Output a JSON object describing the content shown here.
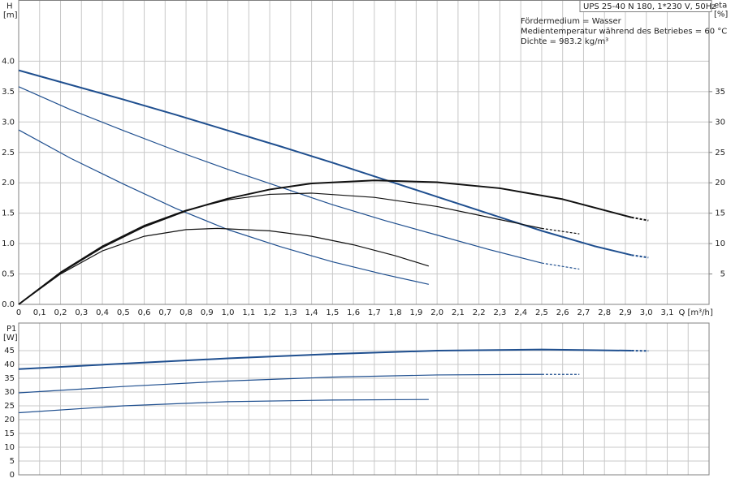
{
  "chart_data": [
    {
      "type": "line",
      "title": "UPS 25-40 N 180, 1*230 V, 50Hz",
      "annotations": [
        "Fördermedium = Wasser",
        "Medientemperatur während des Betriebes = 60 °C",
        "Dichte = 983.2 kg/m³"
      ],
      "ylabel": "H",
      "yunit": "[m]",
      "y2label": "eta",
      "y2unit": "[%]",
      "xlabel": "Q [m³/h]",
      "xlim": [
        0,
        3.3
      ],
      "ylim": [
        0,
        5
      ],
      "y2lim": [
        0,
        50
      ],
      "grid": true,
      "xticks": [
        0,
        {
          "value": 0.1,
          "label": "0,1"
        },
        {
          "value": 0.2,
          "label": "0,2"
        },
        {
          "value": 0.3,
          "label": "0,3"
        },
        {
          "value": 0.4,
          "label": "0,4"
        },
        {
          "value": 0.5,
          "label": "0,5"
        },
        {
          "value": 0.6,
          "label": "0,6"
        },
        {
          "value": 0.7,
          "label": "0,7"
        },
        {
          "value": 0.8,
          "label": "0,8"
        },
        {
          "value": 0.9,
          "label": "0,9"
        },
        {
          "value": 1.0,
          "label": "1,0"
        },
        {
          "value": 1.1,
          "label": "1,1"
        },
        {
          "value": 1.2,
          "label": "1,2"
        },
        {
          "value": 1.3,
          "label": "1,3"
        },
        {
          "value": 1.4,
          "label": "1,4"
        },
        {
          "value": 1.5,
          "label": "1,5"
        },
        {
          "value": 1.6,
          "label": "1,6"
        },
        {
          "value": 1.7,
          "label": "1,7"
        },
        {
          "value": 1.8,
          "label": "1,8"
        },
        {
          "value": 1.9,
          "label": "1,9"
        },
        {
          "value": 2.0,
          "label": "2,0"
        },
        {
          "value": 2.1,
          "label": "2,1"
        },
        {
          "value": 2.2,
          "label": "2,2"
        },
        {
          "value": 2.3,
          "label": "2,3"
        },
        {
          "value": 2.4,
          "label": "2,4"
        },
        {
          "value": 2.5,
          "label": "2,5"
        },
        {
          "value": 2.6,
          "label": "2,6"
        },
        {
          "value": 2.7,
          "label": "2,7"
        },
        {
          "value": 2.8,
          "label": "2,8"
        },
        {
          "value": 2.9,
          "label": "2,9"
        },
        {
          "value": 3.0,
          "label": "3,0"
        },
        {
          "value": 3.1,
          "label": "3,1"
        }
      ],
      "yticks": [
        {
          "value": 0,
          "label": "0.0"
        },
        0.5,
        {
          "value": 1,
          "label": "1.0"
        },
        1.5,
        {
          "value": 2,
          "label": "2.0"
        },
        2.5,
        {
          "value": 3,
          "label": "3.0"
        },
        3.5,
        {
          "value": 4,
          "label": "4.0"
        }
      ],
      "y2ticks": [
        5,
        10,
        15,
        20,
        25,
        30,
        35
      ],
      "series": [
        {
          "color": "#1f4f8f",
          "line_width": 2,
          "dash": false,
          "x": [
            0,
            0.25,
            0.5,
            0.75,
            1.0,
            1.25,
            1.5,
            1.75,
            2.0,
            2.25,
            2.5,
            2.75,
            2.93
          ],
          "values": [
            3.85,
            3.61,
            3.37,
            3.12,
            2.86,
            2.6,
            2.33,
            2.05,
            1.77,
            1.49,
            1.21,
            0.96,
            0.81
          ]
        },
        {
          "color": "#1f4f8f",
          "line_width": 2,
          "dash": true,
          "x": [
            2.93,
            3.01
          ],
          "values": [
            0.81,
            0.77
          ]
        },
        {
          "color": "#1f4f8f",
          "line_width": 1.2,
          "dash": false,
          "x": [
            0,
            0.25,
            0.5,
            0.75,
            1.0,
            1.25,
            1.5,
            1.75,
            2.0,
            2.25,
            2.5
          ],
          "values": [
            3.58,
            3.2,
            2.86,
            2.53,
            2.22,
            1.93,
            1.64,
            1.38,
            1.14,
            0.9,
            0.68
          ]
        },
        {
          "color": "#1f4f8f",
          "line_width": 1.2,
          "dash": true,
          "x": [
            2.5,
            2.68
          ],
          "values": [
            0.68,
            0.58
          ]
        },
        {
          "color": "#1f4f8f",
          "line_width": 1.2,
          "dash": false,
          "x": [
            0,
            0.25,
            0.5,
            0.75,
            1.0,
            1.25,
            1.5,
            1.75,
            1.96
          ],
          "values": [
            2.87,
            2.4,
            1.98,
            1.58,
            1.23,
            0.95,
            0.7,
            0.49,
            0.33
          ]
        },
        {
          "color": "#111111",
          "line_width": 2,
          "dash": false,
          "axis": "y2",
          "x": [
            0,
            0.2,
            0.4,
            0.6,
            0.8,
            1.0,
            1.2,
            1.4,
            1.7,
            2.0,
            2.3,
            2.6,
            2.93
          ],
          "values": [
            0,
            5.2,
            9.4,
            12.8,
            15.4,
            17.4,
            18.9,
            19.9,
            20.4,
            20.1,
            19.1,
            17.3,
            14.3
          ]
        },
        {
          "color": "#111111",
          "line_width": 2,
          "dash": true,
          "axis": "y2",
          "x": [
            2.93,
            3.01
          ],
          "values": [
            14.3,
            13.8
          ]
        },
        {
          "color": "#111111",
          "line_width": 1.2,
          "dash": false,
          "axis": "y2",
          "x": [
            0,
            0.2,
            0.4,
            0.6,
            0.8,
            1.0,
            1.2,
            1.4,
            1.7,
            2.0,
            2.25,
            2.5
          ],
          "values": [
            0,
            5.3,
            9.6,
            13,
            15.5,
            17.2,
            18.1,
            18.3,
            17.6,
            16.1,
            14.3,
            12.5
          ]
        },
        {
          "color": "#111111",
          "line_width": 1.2,
          "dash": true,
          "axis": "y2",
          "x": [
            2.5,
            2.68
          ],
          "values": [
            12.5,
            11.6
          ]
        },
        {
          "color": "#111111",
          "line_width": 1.2,
          "dash": false,
          "axis": "y2",
          "x": [
            0,
            0.2,
            0.4,
            0.6,
            0.8,
            0.95,
            1.2,
            1.4,
            1.6,
            1.8,
            1.96
          ],
          "values": [
            0,
            5.0,
            8.8,
            11.2,
            12.3,
            12.5,
            12.1,
            11.2,
            9.8,
            8,
            6.3
          ]
        }
      ]
    },
    {
      "type": "line",
      "ylabel": "P1",
      "yunit": "[W]",
      "xlim": [
        0,
        3.3
      ],
      "ylim": [
        0,
        55
      ],
      "grid": true,
      "xgrid": [
        0,
        0.1,
        0.2,
        0.3,
        0.4,
        0.5,
        0.6,
        0.7,
        0.8,
        0.9,
        1.0,
        1.1,
        1.2,
        1.3,
        1.4,
        1.5,
        1.6,
        1.7,
        1.8,
        1.9,
        2.0,
        2.1,
        2.2,
        2.3,
        2.4,
        2.5,
        2.6,
        2.7,
        2.8,
        2.9,
        3.0,
        3.1,
        3.2
      ],
      "yticks": [
        0,
        5,
        10,
        15,
        20,
        25,
        30,
        35,
        40,
        45
      ],
      "series": [
        {
          "color": "#1f4f8f",
          "line_width": 2,
          "dash": false,
          "x": [
            0,
            0.5,
            1.0,
            1.5,
            2.0,
            2.5,
            2.93
          ],
          "values": [
            38.3,
            40.3,
            42.2,
            43.8,
            45,
            45.4,
            45
          ]
        },
        {
          "color": "#1f4f8f",
          "line_width": 2,
          "dash": true,
          "x": [
            2.93,
            3.01
          ],
          "values": [
            45,
            44.9
          ]
        },
        {
          "color": "#1f4f8f",
          "line_width": 1.2,
          "dash": false,
          "x": [
            0,
            0.5,
            1.0,
            1.5,
            2.0,
            2.5
          ],
          "values": [
            29.7,
            32,
            34,
            35.4,
            36.2,
            36.4
          ]
        },
        {
          "color": "#1f4f8f",
          "line_width": 1.2,
          "dash": true,
          "x": [
            2.5,
            2.68
          ],
          "values": [
            36.4,
            36.4
          ]
        },
        {
          "color": "#1f4f8f",
          "line_width": 1.2,
          "dash": false,
          "x": [
            0,
            0.5,
            1.0,
            1.5,
            1.96
          ],
          "values": [
            22.5,
            25,
            26.5,
            27.1,
            27.3
          ]
        }
      ]
    }
  ]
}
